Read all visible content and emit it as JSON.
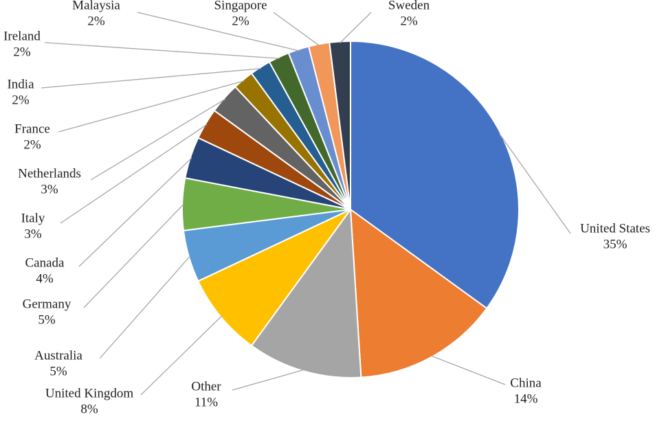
{
  "chart_data": {
    "type": "pie",
    "categories": [
      "United States",
      "China",
      "Other",
      "United Kingdom",
      "Australia",
      "Germany",
      "Canada",
      "Italy",
      "Netherlands",
      "France",
      "India",
      "Ireland",
      "Malaysia",
      "Singapore",
      "Sweden"
    ],
    "values": [
      35,
      14,
      11,
      8,
      5,
      5,
      4,
      3,
      3,
      2,
      2,
      2,
      2,
      2,
      2
    ],
    "value_labels": [
      "35%",
      "14%",
      "11%",
      "8%",
      "5%",
      "5%",
      "4%",
      "3%",
      "3%",
      "2%",
      "2%",
      "2%",
      "2%",
      "2%",
      "2%"
    ],
    "colors": [
      "#4472c4",
      "#ed7d31",
      "#a5a5a5",
      "#ffc000",
      "#5b9bd5",
      "#70ad47",
      "#264478",
      "#9e480e",
      "#636363",
      "#997300",
      "#255e91",
      "#43682b",
      "#698ed0",
      "#f1975a",
      "#333f50"
    ]
  }
}
